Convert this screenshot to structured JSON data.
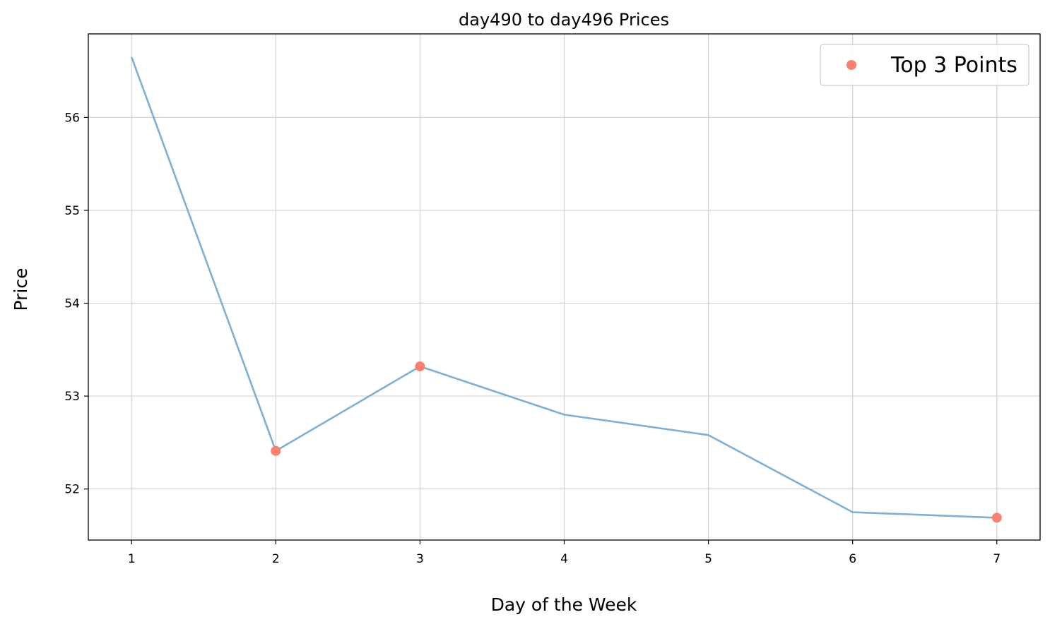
{
  "chart_data": {
    "type": "line",
    "title": "day490 to day496 Prices",
    "xlabel": "Day of the Week",
    "ylabel": "Price",
    "x": [
      1,
      2,
      3,
      4,
      5,
      6,
      7
    ],
    "series": [
      {
        "name": "",
        "values": [
          56.65,
          52.41,
          53.32,
          52.8,
          52.58,
          51.75,
          51.69
        ],
        "color": "#7fafd3"
      }
    ],
    "highlight": {
      "name": "Top 3 Points",
      "x": [
        2,
        3,
        7
      ],
      "values": [
        52.41,
        53.32,
        51.69
      ],
      "color": "#fa8072"
    },
    "xticks": [
      "1",
      "2",
      "3",
      "4",
      "5",
      "6",
      "7"
    ],
    "yticks": [
      "52",
      "53",
      "54",
      "55",
      "56"
    ],
    "xlim": [
      0.7,
      7.3
    ],
    "ylim": [
      51.45,
      56.9
    ],
    "grid": true,
    "legend_position": "top-right"
  }
}
